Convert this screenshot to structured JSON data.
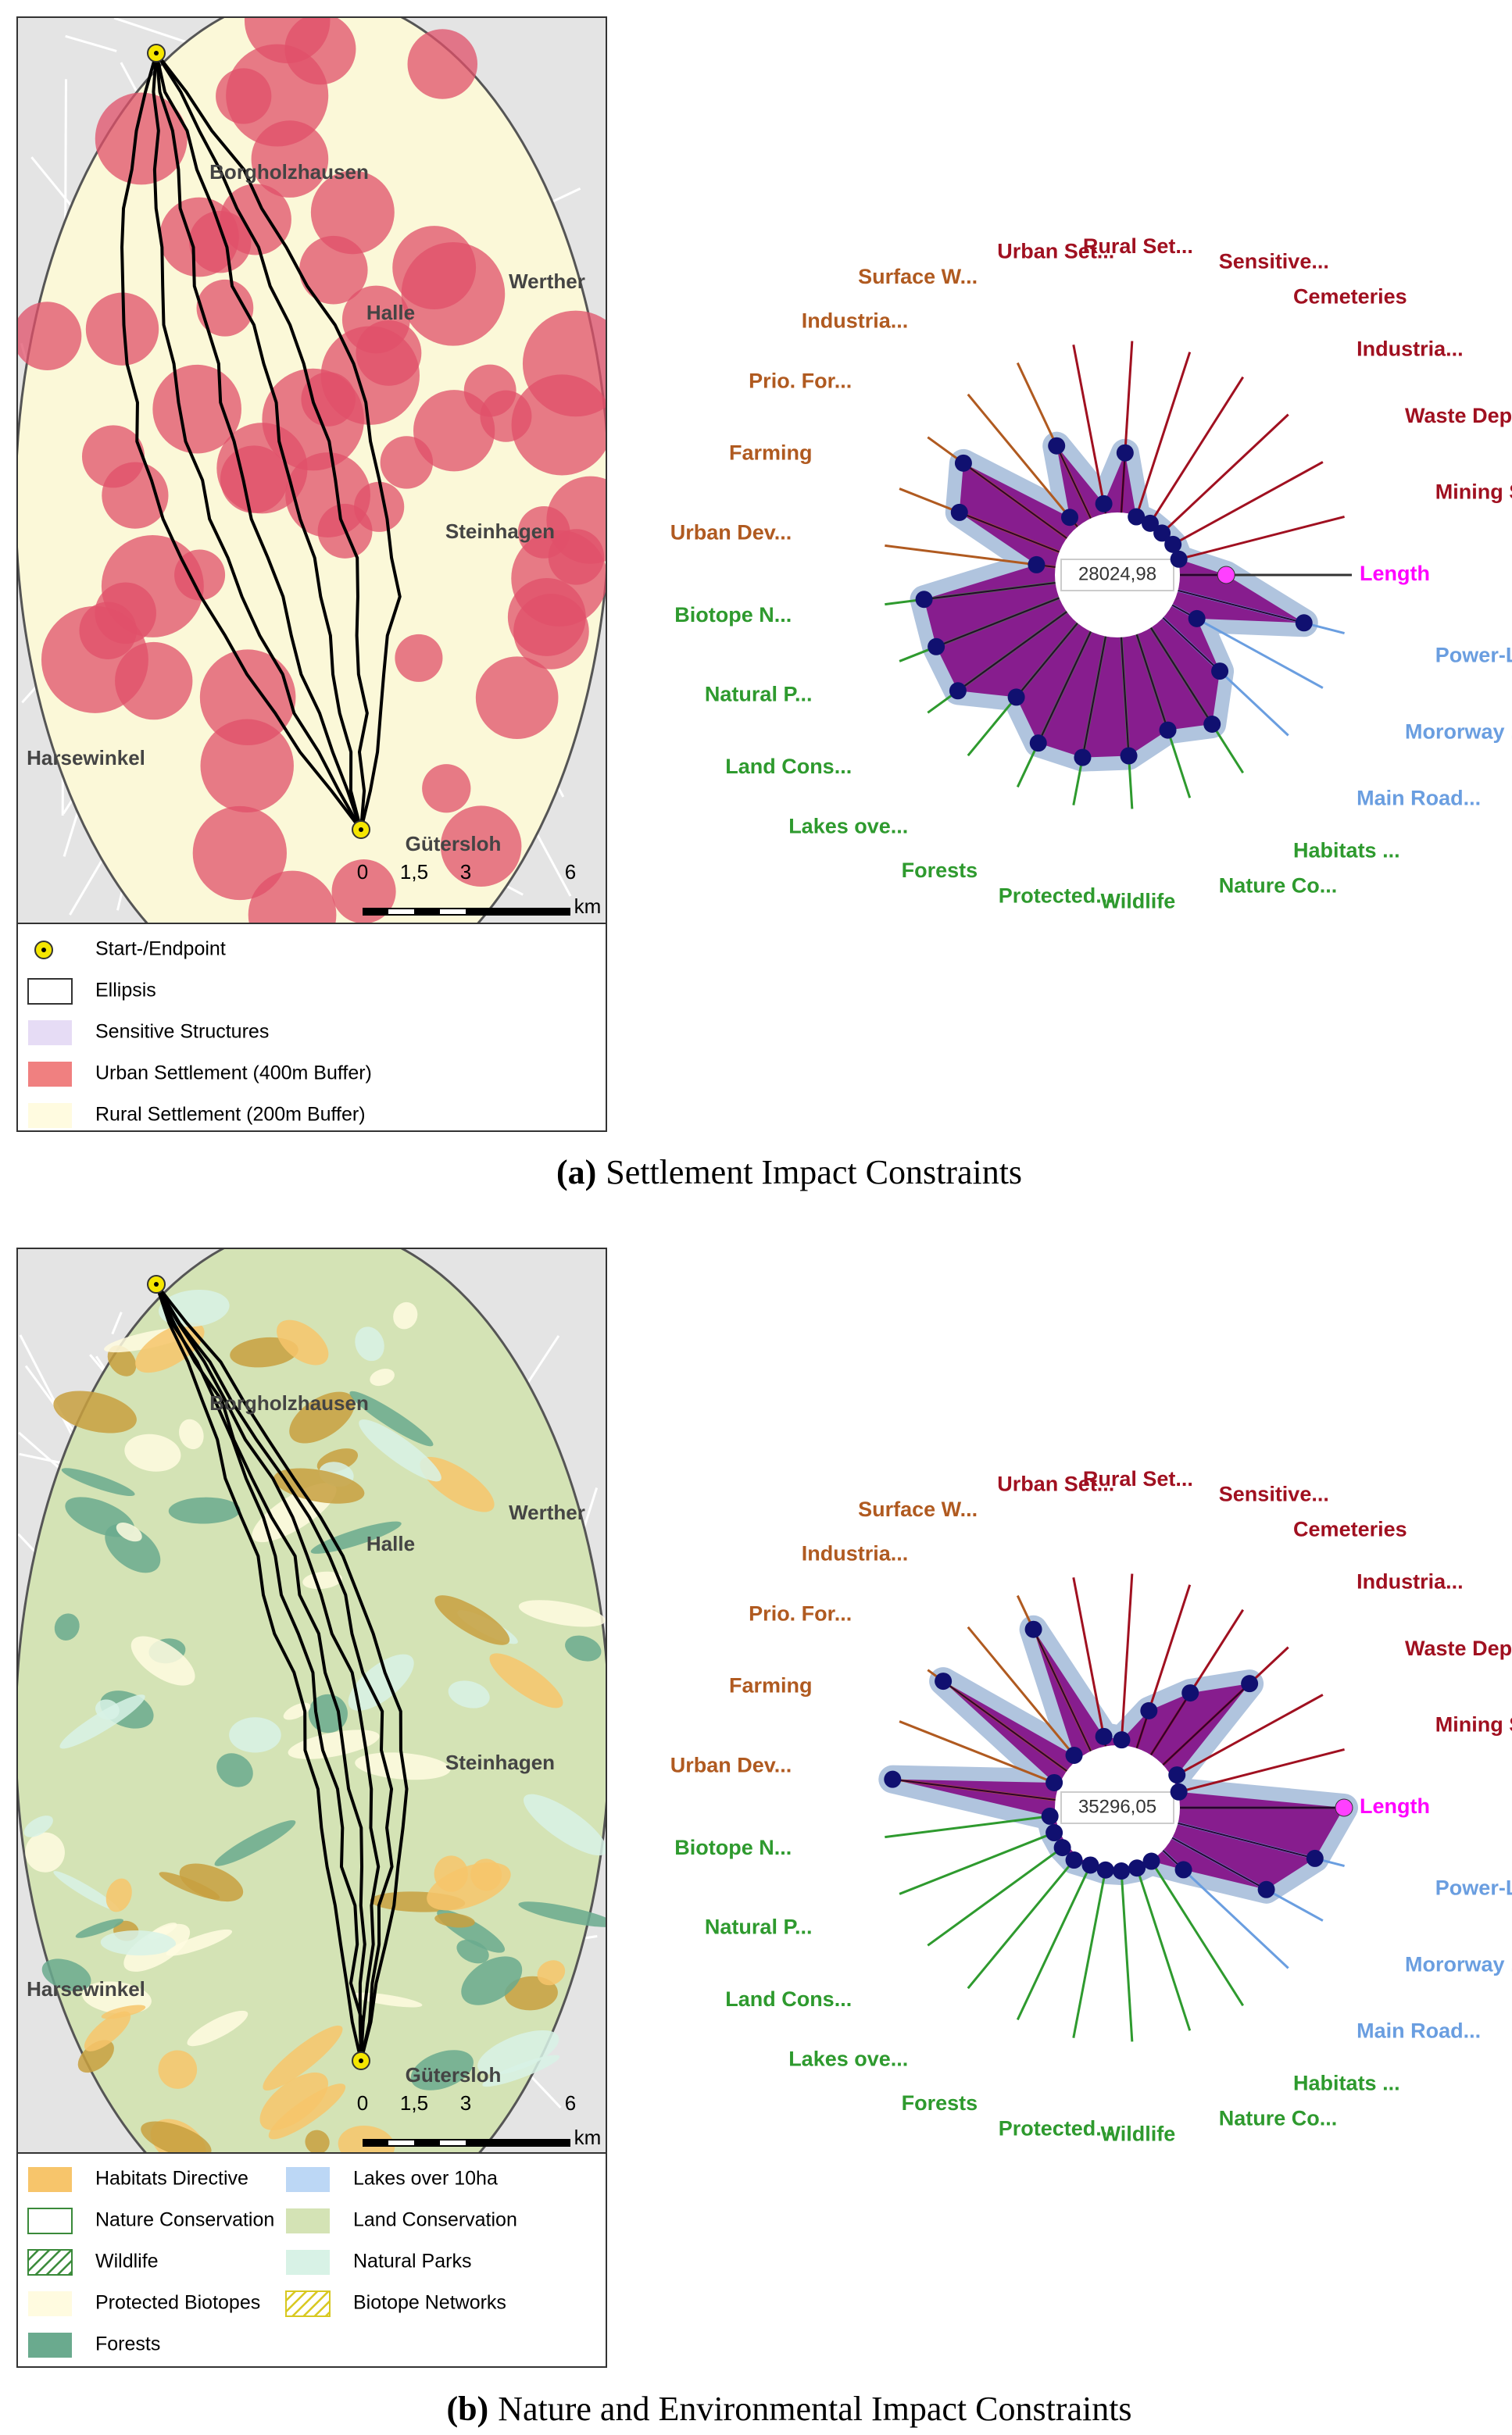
{
  "panels": [
    {
      "caption": {
        "label": "(a)",
        "text": "Settlement Impact Constraints"
      },
      "map": {
        "places": [
          "Borgholzhausen",
          "Halle",
          "Werther",
          "Steinhagen",
          "Harsewinkel",
          "Gütersloh"
        ],
        "scale": {
          "ticks": [
            "0",
            "1,5",
            "3",
            "6"
          ],
          "unit": "km"
        },
        "legend": [
          {
            "label": "Start-/Endpoint",
            "style": "point",
            "color": "#f5e600"
          },
          {
            "label": "Ellipsis",
            "style": "outline",
            "color": "#333333"
          },
          {
            "label": "Sensitive Structures",
            "style": "fill",
            "color": "#e6dcf5"
          },
          {
            "label": "Urban Settlement (400m Buffer)",
            "style": "fill",
            "color": "#f08080"
          },
          {
            "label": "Rural Settlement (200m Buffer)",
            "style": "fill",
            "color": "#fffbe0"
          }
        ]
      },
      "radar": {
        "center_label": "28024,98",
        "spokes": [
          {
            "label": "Length",
            "color": "#ff00ff"
          },
          {
            "label": "Mining Sites",
            "color": "#a01020"
          },
          {
            "label": "Waste Dep...",
            "color": "#a01020"
          },
          {
            "label": "Industria...",
            "color": "#a01020"
          },
          {
            "label": "Cemeteries",
            "color": "#a01020"
          },
          {
            "label": "Sensitive...",
            "color": "#a01020"
          },
          {
            "label": "Rural Set...",
            "color": "#a01020"
          },
          {
            "label": "Urban Set...",
            "color": "#a01020"
          },
          {
            "label": "Surface W...",
            "color": "#b05a20"
          },
          {
            "label": "Industria...",
            "color": "#b05a20"
          },
          {
            "label": "Prio. For...",
            "color": "#b05a20"
          },
          {
            "label": "Farming",
            "color": "#b05a20"
          },
          {
            "label": "Urban Dev...",
            "color": "#b05a20"
          },
          {
            "label": "Biotope N...",
            "color": "#2e9a2e"
          },
          {
            "label": "Natural P...",
            "color": "#2e9a2e"
          },
          {
            "label": "Land Cons...",
            "color": "#2e9a2e"
          },
          {
            "label": "Lakes ove...",
            "color": "#2e9a2e"
          },
          {
            "label": "Forests",
            "color": "#2e9a2e"
          },
          {
            "label": "Protected...",
            "color": "#2e9a2e"
          },
          {
            "label": "Wildlife",
            "color": "#2e9a2e"
          },
          {
            "label": "Nature Co...",
            "color": "#2e9a2e"
          },
          {
            "label": "Habitats ...",
            "color": "#2e9a2e"
          },
          {
            "label": "Main Road...",
            "color": "#6a9ee0"
          },
          {
            "label": "Mororway ...",
            "color": "#6a9ee0"
          },
          {
            "label": "Power-Lin...",
            "color": "#6a9ee0"
          }
        ],
        "values": [
          48,
          28,
          28,
          27,
          27,
          27,
          54,
          32,
          63,
          33,
          84,
          75,
          36,
          86,
          86,
          87,
          70,
          82,
          82,
          80,
          72,
          78,
          62,
          40,
          85
        ]
      }
    },
    {
      "caption": {
        "label": "(b)",
        "text": "Nature and Environmental Impact Constraints"
      },
      "map": {
        "places": [
          "Borgholzhausen",
          "Halle",
          "Werther",
          "Steinhagen",
          "Harsewinkel",
          "Gütersloh"
        ],
        "scale": {
          "ticks": [
            "0",
            "1,5",
            "3",
            "6"
          ],
          "unit": "km"
        },
        "legend": [
          {
            "label": "Habitats Directive",
            "style": "fill",
            "color": "#f7c56b"
          },
          {
            "label": "Nature Conservation",
            "style": "outline",
            "color": "#3a8a3a"
          },
          {
            "label": "Wildlife",
            "style": "hatch",
            "color": "#3a8a3a"
          },
          {
            "label": "Protected Biotopes",
            "style": "fill",
            "color": "#fffbe0"
          },
          {
            "label": "Forests",
            "style": "fill",
            "color": "#6aaa8e"
          },
          {
            "label": "Lakes over 10ha",
            "style": "fill",
            "color": "#bcd7f5"
          },
          {
            "label": "Land Conservation",
            "style": "fill",
            "color": "#d4e3b5"
          },
          {
            "label": "Natural Parks",
            "style": "fill",
            "color": "#d8f2e6"
          },
          {
            "label": "Biotope Networks",
            "style": "hatch",
            "color": "#d8c820"
          }
        ]
      },
      "radar": {
        "center_label": "35296,05",
        "spokes": [
          {
            "label": "Length",
            "color": "#ff00ff"
          },
          {
            "label": "Mining Sites",
            "color": "#a01020"
          },
          {
            "label": "Waste Dep...",
            "color": "#a01020"
          },
          {
            "label": "Industria...",
            "color": "#a01020"
          },
          {
            "label": "Cemeteries",
            "color": "#a01020"
          },
          {
            "label": "Sensitive...",
            "color": "#a01020"
          },
          {
            "label": "Rural Set...",
            "color": "#a01020"
          },
          {
            "label": "Urban Set...",
            "color": "#a01020"
          },
          {
            "label": "Surface W...",
            "color": "#b05a20"
          },
          {
            "label": "Industria...",
            "color": "#b05a20"
          },
          {
            "label": "Prio. For...",
            "color": "#b05a20"
          },
          {
            "label": "Farming",
            "color": "#b05a20"
          },
          {
            "label": "Urban Dev...",
            "color": "#b05a20"
          },
          {
            "label": "Biotope N...",
            "color": "#2e9a2e"
          },
          {
            "label": "Natural P...",
            "color": "#2e9a2e"
          },
          {
            "label": "Land Cons...",
            "color": "#2e9a2e"
          },
          {
            "label": "Lakes ove...",
            "color": "#2e9a2e"
          },
          {
            "label": "Forests",
            "color": "#2e9a2e"
          },
          {
            "label": "Protected...",
            "color": "#2e9a2e"
          },
          {
            "label": "Wildlife",
            "color": "#2e9a2e"
          },
          {
            "label": "Nature Co...",
            "color": "#2e9a2e"
          },
          {
            "label": "Habitats ...",
            "color": "#2e9a2e"
          },
          {
            "label": "Main Road...",
            "color": "#6a9ee0"
          },
          {
            "label": "Mororway ...",
            "color": "#6a9ee0"
          },
          {
            "label": "Power-Lin...",
            "color": "#6a9ee0"
          }
        ],
        "values": [
          100,
          28,
          30,
          80,
          60,
          45,
          30,
          32,
          87,
          30,
          95,
          30,
          100,
          30,
          30,
          30,
          30,
          28,
          28,
          28,
          28,
          28,
          40,
          75,
          90
        ]
      }
    }
  ]
}
